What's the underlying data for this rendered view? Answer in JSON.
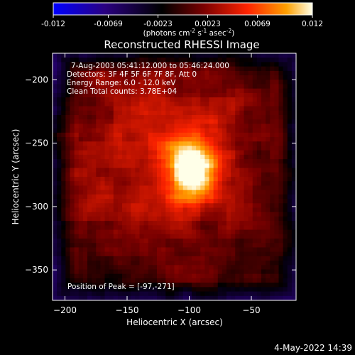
{
  "colorbar": {
    "ticks": [
      "-0.012",
      "-0.0069",
      "-0.0023",
      "0.0023",
      "0.0069",
      "0.012"
    ],
    "tick_values": [
      -0.012,
      -0.0069,
      -0.0023,
      0.0023,
      0.0069,
      0.012
    ],
    "range": [
      -0.012,
      0.012
    ],
    "label": "(photons cm",
    "label_exp1": "-2",
    "label_mid": " s",
    "label_exp2": "-1",
    "label_mid2": " asec",
    "label_exp3": "-2",
    "label_end": ")",
    "colormap": [
      "#0000ff",
      "#2a0080",
      "#000000",
      "#800000",
      "#ff2000",
      "#ffa000",
      "#ffffe0"
    ]
  },
  "chart_data": {
    "type": "heatmap",
    "title": "Reconstructed RHESSI Image",
    "xlabel": "Heliocentric X (arcsec)",
    "ylabel": "Heliocentric Y (arcsec)",
    "xlim": [
      -210,
      -14
    ],
    "ylim": [
      -374,
      -179
    ],
    "xticks": [
      -200,
      -150,
      -100,
      -50
    ],
    "yticks": [
      -200,
      -250,
      -300,
      -350
    ],
    "xtick_labels": [
      "−200",
      "−150",
      "−100",
      "−50"
    ],
    "ytick_labels": [
      "−200",
      "−250",
      "−300",
      "−350"
    ],
    "annotations": [
      "7-Aug-2003 05:41:12.000 to 05:46:24.000",
      "Detectors: 3F 4F 5F 6F 7F 8F, Att 0",
      "Energy Range: 6.0 - 12.0 keV",
      "Clean     Total counts: 3.78E+04"
    ],
    "peak_label": "Position of Peak = [-97,-271]",
    "peak": [
      -97,
      -271
    ]
  },
  "footer": {
    "timestamp": "4-May-2022 14:39"
  }
}
